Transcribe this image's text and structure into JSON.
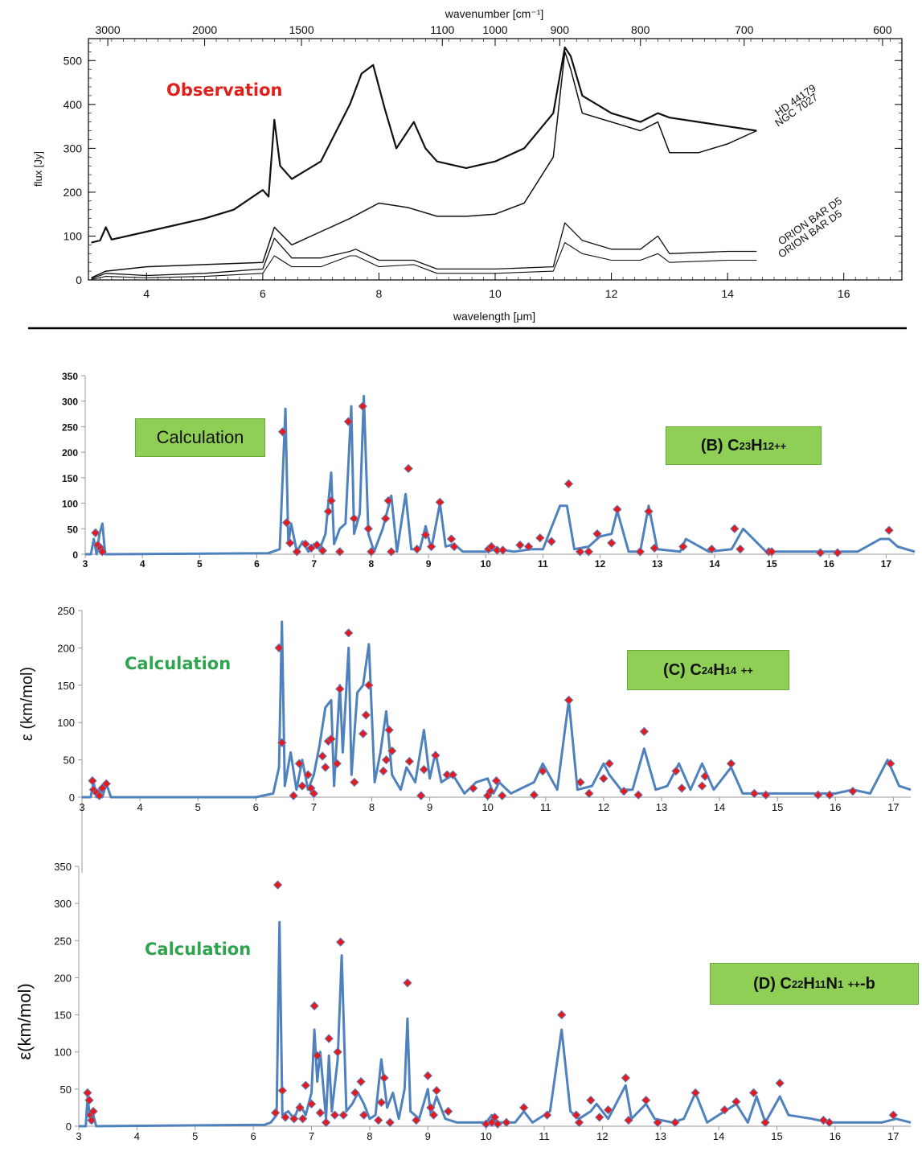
{
  "chart_data": [
    {
      "type": "line",
      "title": "",
      "annotation": "Observation",
      "annotation_color": "#e0201b",
      "xlabel": "wavelength [μm]",
      "ylabel": "flux [Jy]",
      "top_xlabel": "wavenumber [cm⁻¹]",
      "xlim": [
        3.0,
        17.0
      ],
      "ylim": [
        0,
        550
      ],
      "xticks": [
        "4",
        "6",
        "8",
        "10",
        "12",
        "14",
        "16"
      ],
      "yticks": [
        "0",
        "100",
        "200",
        "300",
        "400",
        "500"
      ],
      "top_ticks": [
        "3000",
        "2000",
        "1500",
        "1100",
        "1000",
        "900",
        "800",
        "700",
        "600"
      ],
      "series_labels": [
        {
          "text": "HD 44179"
        },
        {
          "text": "NGC 7027"
        },
        {
          "text": "ORION BAR D5"
        },
        {
          "text": "ORION BAR D5"
        }
      ],
      "series": [
        {
          "name": "HD 44179",
          "x": [
            3.05,
            3.2,
            3.3,
            3.4,
            4,
            5,
            5.5,
            6.0,
            6.1,
            6.2,
            6.3,
            6.5,
            7,
            7.5,
            7.7,
            7.9,
            8.1,
            8.3,
            8.5,
            8.6,
            8.8,
            9,
            9.5,
            10,
            10.5,
            11,
            11.2,
            11.3,
            11.5,
            12,
            12.5,
            12.8,
            13,
            13.5,
            14,
            14.5
          ],
          "y": [
            85,
            90,
            120,
            92,
            110,
            140,
            160,
            205,
            190,
            365,
            260,
            230,
            270,
            400,
            470,
            490,
            390,
            300,
            340,
            360,
            300,
            270,
            255,
            270,
            300,
            380,
            530,
            510,
            420,
            380,
            360,
            380,
            370,
            360,
            350,
            340
          ]
        },
        {
          "name": "NGC 7027",
          "x": [
            3.05,
            3.3,
            4,
            5,
            6,
            6.2,
            6.5,
            7,
            7.5,
            8,
            8.5,
            9,
            9.5,
            10,
            10.5,
            11,
            11.2,
            11.3,
            11.5,
            12,
            12.5,
            12.8,
            13,
            13.5,
            14,
            14.5
          ],
          "y": [
            5,
            20,
            30,
            35,
            40,
            120,
            80,
            110,
            140,
            175,
            165,
            145,
            145,
            150,
            175,
            280,
            520,
            480,
            380,
            360,
            340,
            360,
            290,
            290,
            310,
            340
          ]
        },
        {
          "name": "ORION BAR D5",
          "x": [
            3.05,
            3.3,
            4,
            5,
            6,
            6.2,
            6.5,
            7,
            7.5,
            7.6,
            8,
            8.6,
            9,
            10,
            11,
            11.2,
            11.5,
            12,
            12.5,
            12.8,
            13,
            14,
            14.5
          ],
          "y": [
            3,
            15,
            10,
            15,
            25,
            95,
            50,
            50,
            65,
            70,
            45,
            45,
            25,
            25,
            30,
            130,
            90,
            70,
            70,
            100,
            60,
            65,
            65
          ]
        },
        {
          "name": "ORION BAR D5",
          "x": [
            3.05,
            3.3,
            4,
            5,
            6,
            6.2,
            6.5,
            7,
            7.5,
            7.6,
            8,
            8.6,
            9,
            10,
            11,
            11.2,
            11.5,
            12,
            12.5,
            12.8,
            13,
            14,
            14.5
          ],
          "y": [
            1,
            8,
            5,
            8,
            15,
            55,
            30,
            30,
            55,
            55,
            30,
            35,
            15,
            15,
            20,
            85,
            60,
            45,
            45,
            60,
            40,
            45,
            45
          ]
        }
      ]
    },
    {
      "type": "line",
      "title": "",
      "annotation": "Calculation",
      "label": "(B) C23H12++",
      "label_main": "(B) C",
      "label_sub1": "23",
      "label_h": "H",
      "label_sub2": "12",
      "label_sup": "++",
      "xlim": [
        3.0,
        17.5
      ],
      "ylim": [
        0,
        350
      ],
      "xticks": [
        "3",
        "4",
        "5",
        "6",
        "7",
        "8",
        "9",
        "10",
        "11",
        "12",
        "13",
        "14",
        "15",
        "16",
        "17"
      ],
      "yticks": [
        "0",
        "50",
        "100",
        "150",
        "200",
        "250",
        "300",
        "350"
      ],
      "sticks": {
        "x": [
          3.18,
          3.22,
          3.27,
          3.3,
          6.45,
          6.52,
          6.58,
          6.7,
          6.85,
          6.95,
          7.05,
          7.15,
          7.25,
          7.3,
          7.45,
          7.6,
          7.7,
          7.85,
          7.95,
          8.0,
          8.25,
          8.3,
          8.35,
          8.65,
          8.8,
          8.95,
          9.05,
          9.2,
          9.4,
          9.45,
          10.05,
          10.1,
          10.2,
          10.3,
          10.6,
          10.75,
          10.95,
          11.15,
          11.45,
          11.65,
          11.8,
          11.95,
          12.2,
          12.3,
          12.7,
          12.85,
          12.95,
          13.45,
          13.95,
          14.35,
          14.45,
          14.95,
          15.0,
          15.85,
          16.15,
          17.05
        ],
        "y": [
          42,
          18,
          12,
          5,
          240,
          62,
          22,
          5,
          20,
          12,
          18,
          7,
          84,
          105,
          5,
          260,
          70,
          290,
          50,
          5,
          70,
          105,
          5,
          168,
          10,
          38,
          15,
          102,
          30,
          15,
          10,
          15,
          8,
          8,
          18,
          15,
          32,
          25,
          138,
          5,
          5,
          40,
          22,
          88,
          5,
          84,
          12,
          15,
          10,
          50,
          10,
          5,
          5,
          3,
          3,
          47
        ]
      },
      "curve": {
        "x": [
          3.0,
          3.1,
          3.15,
          3.2,
          3.25,
          3.3,
          3.35,
          6.2,
          6.4,
          6.5,
          6.55,
          6.6,
          6.7,
          6.8,
          6.9,
          7.0,
          7.1,
          7.2,
          7.3,
          7.35,
          7.45,
          7.55,
          7.65,
          7.7,
          7.8,
          7.87,
          7.95,
          8.05,
          8.2,
          8.35,
          8.45,
          8.6,
          8.7,
          8.85,
          8.95,
          9.05,
          9.2,
          9.3,
          9.45,
          9.6,
          10,
          10.2,
          10.5,
          10.8,
          11.0,
          11.3,
          11.42,
          11.55,
          11.8,
          12.0,
          12.2,
          12.3,
          12.5,
          12.7,
          12.85,
          13.0,
          13.4,
          13.5,
          13.9,
          14.3,
          14.5,
          14.9,
          15.5,
          16,
          16.5,
          16.9,
          17.05,
          17.2,
          17.5
        ],
        "y": [
          0,
          0,
          30,
          0,
          40,
          60,
          0,
          2,
          10,
          285,
          20,
          60,
          5,
          25,
          5,
          20,
          10,
          40,
          160,
          20,
          50,
          60,
          290,
          40,
          80,
          310,
          40,
          5,
          50,
          115,
          5,
          118,
          10,
          10,
          55,
          10,
          100,
          15,
          20,
          5,
          5,
          10,
          5,
          10,
          10,
          95,
          95,
          10,
          15,
          35,
          40,
          85,
          5,
          5,
          95,
          10,
          5,
          30,
          5,
          10,
          50,
          5,
          5,
          5,
          5,
          30,
          30,
          15,
          5
        ]
      },
      "series_color": "#4f81bd",
      "marker_color": "#e8191b"
    },
    {
      "type": "line",
      "title": "",
      "annotation": "Calculation",
      "label": "(C) C24H14 ++",
      "label_main": "(C) C",
      "label_sub1": "24",
      "label_h": "H",
      "label_sub2": "14",
      "label_sup": "++",
      "ylabel": "ε  (km/mol)",
      "xlim": [
        3.0,
        17.3
      ],
      "ylim": [
        0,
        250
      ],
      "xticks": [
        "3",
        "4",
        "5",
        "6",
        "7",
        "8",
        "9",
        "10",
        "11",
        "12",
        "13",
        "14",
        "15",
        "16",
        "17"
      ],
      "yticks": [
        "0",
        "50",
        "100",
        "150",
        "200",
        "250"
      ],
      "sticks": {
        "x": [
          3.18,
          3.2,
          3.25,
          3.3,
          3.35,
          3.42,
          6.4,
          6.45,
          6.65,
          6.75,
          6.8,
          6.9,
          6.95,
          7.0,
          7.15,
          7.2,
          7.25,
          7.3,
          7.4,
          7.45,
          7.6,
          7.7,
          7.85,
          7.9,
          7.95,
          8.2,
          8.25,
          8.3,
          8.35,
          8.65,
          8.85,
          8.9,
          9.1,
          9.3,
          9.4,
          9.75,
          10.0,
          10.05,
          10.15,
          10.25,
          10.8,
          10.95,
          11.4,
          11.6,
          11.75,
          12.0,
          12.1,
          12.35,
          12.6,
          12.7,
          13.25,
          13.35,
          13.7,
          13.75,
          14.2,
          14.6,
          14.8,
          15.7,
          15.9,
          16.3,
          16.95
        ],
        "y": [
          22,
          10,
          6,
          2,
          12,
          18,
          200,
          73,
          2,
          45,
          15,
          30,
          12,
          5,
          55,
          40,
          75,
          78,
          45,
          145,
          220,
          20,
          85,
          110,
          150,
          35,
          50,
          90,
          62,
          48,
          2,
          37,
          56,
          30,
          30,
          12,
          2,
          8,
          22,
          2,
          3,
          35,
          130,
          20,
          5,
          25,
          45,
          8,
          3,
          88,
          35,
          12,
          15,
          28,
          45,
          5,
          3,
          3,
          3,
          8,
          45
        ]
      },
      "curve": {
        "x": [
          3.0,
          3.15,
          3.2,
          3.25,
          3.3,
          3.35,
          3.42,
          3.5,
          6.0,
          6.3,
          6.4,
          6.45,
          6.5,
          6.6,
          6.7,
          6.8,
          6.9,
          7.0,
          7.1,
          7.2,
          7.3,
          7.35,
          7.45,
          7.5,
          7.6,
          7.65,
          7.75,
          7.85,
          7.95,
          8.05,
          8.15,
          8.25,
          8.35,
          8.5,
          8.6,
          8.75,
          8.9,
          9.0,
          9.1,
          9.2,
          9.4,
          9.6,
          9.8,
          10.0,
          10.1,
          10.2,
          10.4,
          10.8,
          10.95,
          11.2,
          11.4,
          11.55,
          11.8,
          12.0,
          12.1,
          12.3,
          12.5,
          12.7,
          12.9,
          13.1,
          13.3,
          13.5,
          13.7,
          13.9,
          14.2,
          14.4,
          15,
          15.5,
          16,
          16.3,
          16.6,
          16.9,
          17.1,
          17.3
        ],
        "y": [
          0,
          0,
          20,
          0,
          10,
          0,
          18,
          0,
          0,
          5,
          40,
          235,
          15,
          60,
          10,
          50,
          10,
          30,
          70,
          120,
          130,
          15,
          150,
          60,
          200,
          30,
          140,
          150,
          205,
          20,
          60,
          115,
          30,
          10,
          40,
          20,
          90,
          25,
          60,
          20,
          30,
          5,
          20,
          25,
          5,
          20,
          5,
          20,
          45,
          10,
          130,
          10,
          15,
          45,
          30,
          10,
          10,
          65,
          10,
          15,
          45,
          10,
          45,
          10,
          40,
          5,
          5,
          5,
          5,
          10,
          5,
          50,
          15,
          10
        ]
      },
      "series_color": "#4f81bd",
      "marker_color": "#e8191b"
    },
    {
      "type": "line",
      "title": "",
      "annotation": "Calculation",
      "label": "(D) C22H11N1 ++-b",
      "label_main": "(D) C",
      "label_sub1": "22",
      "label_h": "H",
      "label_sub2": "11",
      "label_n": "N",
      "label_sub3": "1",
      "label_sup": "++",
      "label_tail": "-b",
      "ylabel": "ε(km/mol)",
      "xlim": [
        3.0,
        17.3
      ],
      "ylim": [
        0,
        350
      ],
      "xticks": [
        "3",
        "4",
        "5",
        "6",
        "7",
        "8",
        "9",
        "10",
        "11",
        "12",
        "13",
        "14",
        "15",
        "16",
        "17"
      ],
      "yticks": [
        "0",
        "50",
        "100",
        "150",
        "200",
        "250",
        "300",
        "350"
      ],
      "sticks": {
        "x": [
          3.15,
          3.18,
          3.2,
          3.22,
          3.25,
          6.38,
          6.42,
          6.5,
          6.55,
          6.7,
          6.8,
          6.85,
          6.9,
          7.0,
          7.05,
          7.1,
          7.15,
          7.25,
          7.3,
          7.4,
          7.45,
          7.5,
          7.55,
          7.75,
          7.85,
          7.9,
          8.15,
          8.2,
          8.25,
          8.35,
          8.65,
          8.8,
          9.0,
          9.05,
          9.1,
          9.15,
          9.35,
          10.0,
          10.1,
          10.15,
          10.2,
          10.35,
          10.65,
          11.05,
          11.3,
          11.55,
          11.6,
          11.8,
          11.95,
          12.1,
          12.4,
          12.45,
          12.75,
          12.95,
          13.25,
          13.6,
          14.1,
          14.3,
          14.6,
          14.8,
          15.05,
          15.8,
          15.9,
          17.0
        ],
        "y": [
          45,
          35,
          15,
          8,
          20,
          18,
          325,
          48,
          12,
          10,
          25,
          10,
          55,
          30,
          162,
          95,
          18,
          5,
          118,
          15,
          100,
          248,
          15,
          45,
          60,
          15,
          8,
          32,
          65,
          5,
          193,
          8,
          68,
          25,
          15,
          48,
          20,
          3,
          5,
          12,
          3,
          5,
          25,
          15,
          150,
          15,
          5,
          35,
          12,
          22,
          65,
          8,
          35,
          5,
          5,
          45,
          22,
          33,
          45,
          5,
          58,
          8,
          5,
          15
        ]
      },
      "curve": {
        "x": [
          3.0,
          3.12,
          3.15,
          3.2,
          3.25,
          3.3,
          6.2,
          6.3,
          6.4,
          6.45,
          6.5,
          6.6,
          6.7,
          6.8,
          6.9,
          7.0,
          7.05,
          7.1,
          7.15,
          7.25,
          7.3,
          7.35,
          7.45,
          7.52,
          7.6,
          7.7,
          7.8,
          7.9,
          8.0,
          8.1,
          8.2,
          8.3,
          8.4,
          8.5,
          8.6,
          8.65,
          8.7,
          8.85,
          9.0,
          9.05,
          9.15,
          9.3,
          9.5,
          10,
          10.1,
          10.2,
          10.5,
          10.65,
          10.8,
          11.1,
          11.3,
          11.45,
          11.6,
          11.8,
          11.9,
          12.1,
          12.2,
          12.4,
          12.5,
          12.75,
          12.9,
          13.2,
          13.4,
          13.6,
          13.8,
          14.1,
          14.3,
          14.5,
          14.65,
          14.8,
          15.05,
          15.2,
          15.6,
          15.9,
          16.4,
          16.8,
          17.05,
          17.3
        ],
        "y": [
          0,
          0,
          40,
          5,
          15,
          0,
          2,
          5,
          15,
          275,
          15,
          20,
          10,
          30,
          15,
          45,
          130,
          60,
          100,
          10,
          95,
          20,
          90,
          230,
          20,
          30,
          45,
          30,
          10,
          15,
          90,
          25,
          45,
          10,
          50,
          145,
          20,
          10,
          50,
          15,
          40,
          10,
          5,
          5,
          15,
          5,
          5,
          20,
          5,
          20,
          130,
          20,
          10,
          20,
          30,
          10,
          25,
          55,
          10,
          30,
          10,
          5,
          10,
          45,
          5,
          20,
          30,
          5,
          40,
          5,
          40,
          15,
          10,
          5,
          5,
          5,
          10,
          5
        ]
      },
      "series_color": "#4f81bd",
      "marker_color": "#e8191b"
    }
  ]
}
